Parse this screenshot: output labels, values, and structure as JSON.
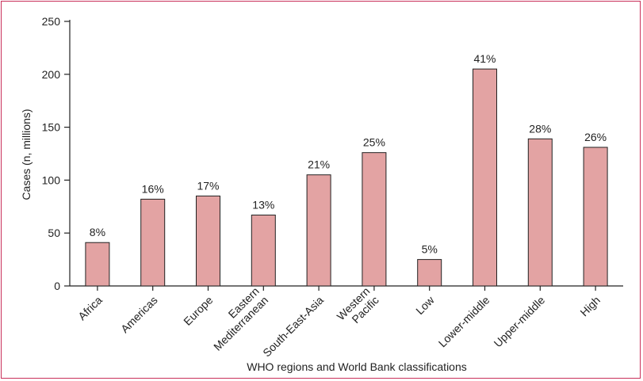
{
  "chart_data": {
    "type": "bar",
    "xlabel": "WHO regions and World Bank classifications",
    "ylabel": "Cases  (n, millions)",
    "ylim": [
      0,
      250
    ],
    "yticks": [
      "0",
      "50",
      "100",
      "150",
      "200",
      "250"
    ],
    "categories": [
      {
        "label": "Africa",
        "label_lines": [
          "Africa"
        ]
      },
      {
        "label": "Americas",
        "label_lines": [
          "Americas"
        ]
      },
      {
        "label": "Europe",
        "label_lines": [
          "Europe"
        ]
      },
      {
        "label": "Eastern Mediterranean",
        "label_lines": [
          "Eastern",
          "Mediterranean"
        ]
      },
      {
        "label": "South-East-Asia",
        "label_lines": [
          "South-East-Asia"
        ]
      },
      {
        "label": "Western Pacific",
        "label_lines": [
          "Western",
          "Pacific"
        ]
      },
      {
        "label": "Low",
        "label_lines": [
          "Low"
        ]
      },
      {
        "label": "Lower-middle",
        "label_lines": [
          "Lower-middle"
        ]
      },
      {
        "label": "Upper-middle",
        "label_lines": [
          "Upper-middle"
        ]
      },
      {
        "label": "High",
        "label_lines": [
          "High"
        ]
      }
    ],
    "values": [
      41,
      82,
      85,
      67,
      105,
      126,
      25,
      205,
      139,
      131
    ],
    "data_labels": [
      "8%",
      "16%",
      "17%",
      "13%",
      "21%",
      "25%",
      "5%",
      "41%",
      "28%",
      "26%"
    ],
    "bar_color": "#e3a3a3",
    "bar_edge_color": "#222222",
    "frame_color": "#c9305a",
    "grid": false
  }
}
